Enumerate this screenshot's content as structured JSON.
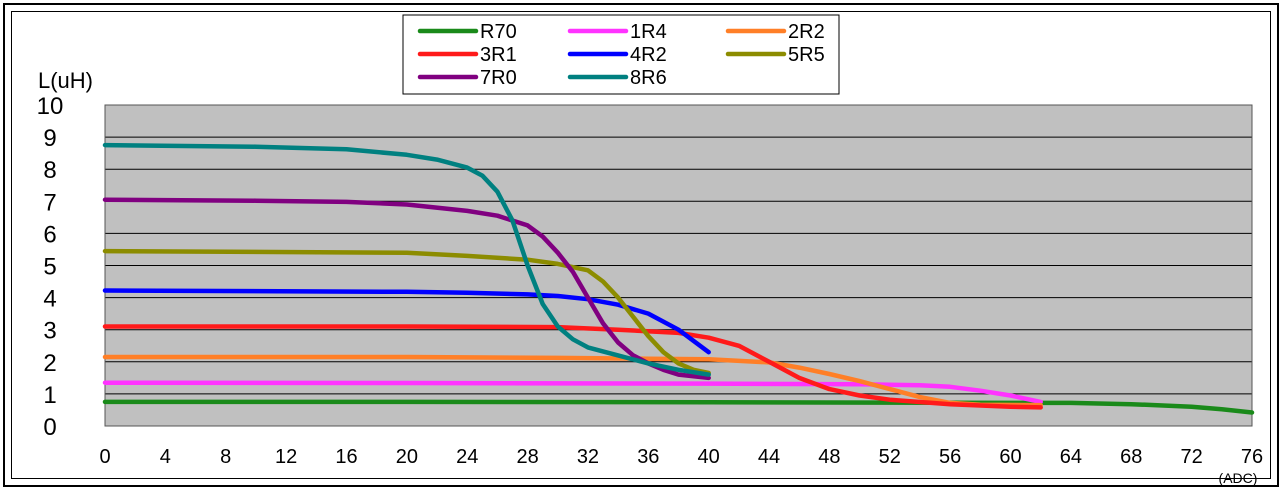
{
  "chart_data": {
    "type": "line",
    "ylabel": "L(uH)",
    "xlabel": "(ADC)",
    "xlim": [
      0,
      76
    ],
    "ylim": [
      0,
      10
    ],
    "xticks": [
      0,
      4,
      8,
      12,
      16,
      20,
      24,
      28,
      32,
      36,
      40,
      44,
      48,
      52,
      56,
      60,
      64,
      68,
      72,
      76
    ],
    "yticks": [
      0,
      1,
      2,
      3,
      4,
      5,
      6,
      7,
      8,
      9,
      10
    ],
    "grid": "horizontal",
    "plot_background": "#c0c0c0",
    "legend_position": "top-center",
    "series": [
      {
        "name": "R70",
        "color": "#1a8a1a",
        "points": [
          [
            0,
            0.75
          ],
          [
            20,
            0.75
          ],
          [
            40,
            0.74
          ],
          [
            60,
            0.72
          ],
          [
            64,
            0.72
          ],
          [
            68,
            0.68
          ],
          [
            72,
            0.6
          ],
          [
            74,
            0.52
          ],
          [
            76,
            0.42
          ]
        ]
      },
      {
        "name": "1R4",
        "color": "#ff33ff",
        "points": [
          [
            0,
            1.35
          ],
          [
            20,
            1.34
          ],
          [
            40,
            1.32
          ],
          [
            50,
            1.3
          ],
          [
            54,
            1.27
          ],
          [
            56,
            1.22
          ],
          [
            58,
            1.1
          ],
          [
            60,
            0.95
          ],
          [
            62,
            0.75
          ]
        ]
      },
      {
        "name": "2R2",
        "color": "#ff7f27",
        "points": [
          [
            0,
            2.15
          ],
          [
            20,
            2.15
          ],
          [
            30,
            2.12
          ],
          [
            40,
            2.08
          ],
          [
            44,
            1.98
          ],
          [
            46,
            1.82
          ],
          [
            48,
            1.62
          ],
          [
            50,
            1.4
          ],
          [
            52,
            1.15
          ],
          [
            54,
            0.9
          ],
          [
            56,
            0.72
          ],
          [
            58,
            0.66
          ],
          [
            62,
            0.65
          ]
        ]
      },
      {
        "name": "3R1",
        "color": "#ff1a1a",
        "points": [
          [
            0,
            3.1
          ],
          [
            20,
            3.1
          ],
          [
            30,
            3.08
          ],
          [
            34,
            3.0
          ],
          [
            38,
            2.9
          ],
          [
            40,
            2.75
          ],
          [
            42,
            2.5
          ],
          [
            44,
            2.0
          ],
          [
            46,
            1.5
          ],
          [
            48,
            1.15
          ],
          [
            50,
            0.95
          ],
          [
            52,
            0.82
          ],
          [
            56,
            0.68
          ],
          [
            60,
            0.6
          ],
          [
            62,
            0.58
          ]
        ]
      },
      {
        "name": "4R2",
        "color": "#0000ff",
        "points": [
          [
            0,
            4.22
          ],
          [
            20,
            4.18
          ],
          [
            24,
            4.15
          ],
          [
            28,
            4.1
          ],
          [
            30,
            4.05
          ],
          [
            32,
            3.95
          ],
          [
            34,
            3.78
          ],
          [
            36,
            3.5
          ],
          [
            38,
            3.0
          ],
          [
            40,
            2.3
          ]
        ]
      },
      {
        "name": "5R5",
        "color": "#8c8c00",
        "points": [
          [
            0,
            5.45
          ],
          [
            20,
            5.4
          ],
          [
            24,
            5.3
          ],
          [
            28,
            5.18
          ],
          [
            30,
            5.05
          ],
          [
            32,
            4.85
          ],
          [
            33,
            4.5
          ],
          [
            34,
            4.0
          ],
          [
            35,
            3.4
          ],
          [
            36,
            2.8
          ],
          [
            37,
            2.3
          ],
          [
            38,
            1.95
          ],
          [
            39,
            1.75
          ],
          [
            40,
            1.65
          ]
        ]
      },
      {
        "name": "7R0",
        "color": "#800080",
        "points": [
          [
            0,
            7.05
          ],
          [
            10,
            7.02
          ],
          [
            16,
            6.98
          ],
          [
            20,
            6.9
          ],
          [
            24,
            6.7
          ],
          [
            26,
            6.55
          ],
          [
            28,
            6.25
          ],
          [
            29,
            5.9
          ],
          [
            30,
            5.4
          ],
          [
            31,
            4.8
          ],
          [
            32,
            4.0
          ],
          [
            33,
            3.2
          ],
          [
            34,
            2.6
          ],
          [
            35,
            2.2
          ],
          [
            36,
            1.95
          ],
          [
            37,
            1.75
          ],
          [
            38,
            1.6
          ],
          [
            40,
            1.5
          ]
        ]
      },
      {
        "name": "8R6",
        "color": "#008080",
        "points": [
          [
            0,
            8.75
          ],
          [
            10,
            8.7
          ],
          [
            16,
            8.62
          ],
          [
            20,
            8.45
          ],
          [
            22,
            8.3
          ],
          [
            24,
            8.05
          ],
          [
            25,
            7.8
          ],
          [
            26,
            7.3
          ],
          [
            27,
            6.4
          ],
          [
            28,
            5.0
          ],
          [
            29,
            3.8
          ],
          [
            30,
            3.1
          ],
          [
            31,
            2.7
          ],
          [
            32,
            2.45
          ],
          [
            34,
            2.2
          ],
          [
            36,
            1.95
          ],
          [
            38,
            1.75
          ],
          [
            40,
            1.6
          ]
        ]
      }
    ]
  }
}
